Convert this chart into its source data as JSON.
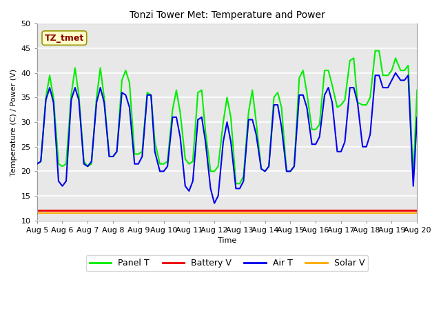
{
  "title": "Tonzi Tower Met: Temperature and Power",
  "xlabel": "Time",
  "ylabel": "Temperature (C) / Power (V)",
  "ylim": [
    10,
    50
  ],
  "xlim": [
    0,
    15
  ],
  "bg_color": "#e8e8e8",
  "annotation_text": "TZ_tmet",
  "annotation_color": "#8b0000",
  "annotation_bg": "#ffffcc",
  "legend_items": [
    "Panel T",
    "Battery V",
    "Air T",
    "Solar V"
  ],
  "legend_colors": [
    "#00ee00",
    "#ee0000",
    "#0000ee",
    "#ffaa00"
  ],
  "xtick_labels": [
    "Aug 5",
    "Aug 6",
    "Aug 7",
    "Aug 8",
    "Aug 9",
    "Aug 10",
    "Aug 11",
    "Aug 12",
    "Aug 13",
    "Aug 14",
    "Aug 15",
    "Aug 16",
    "Aug 17",
    "Aug 18",
    "Aug 19",
    "Aug 20"
  ],
  "xtick_positions": [
    0,
    1,
    2,
    3,
    4,
    5,
    6,
    7,
    8,
    9,
    10,
    11,
    12,
    13,
    14,
    15
  ],
  "ytick_labels": [
    "10",
    "15",
    "20",
    "25",
    "30",
    "35",
    "40",
    "45",
    "50"
  ],
  "ytick_positions": [
    10,
    15,
    20,
    25,
    30,
    35,
    40,
    45,
    50
  ],
  "battery_v_y": 12.0,
  "solar_v_y": 11.5,
  "line_width": 1.5,
  "font_size": 8,
  "title_font_size": 10,
  "panel_t_x": [
    0.0,
    0.15,
    0.35,
    0.5,
    0.65,
    0.85,
    1.0,
    1.15,
    1.35,
    1.5,
    1.65,
    1.85,
    2.0,
    2.15,
    2.35,
    2.5,
    2.65,
    2.85,
    3.0,
    3.15,
    3.35,
    3.5,
    3.65,
    3.85,
    4.0,
    4.15,
    4.35,
    4.5,
    4.65,
    4.85,
    5.0,
    5.15,
    5.35,
    5.5,
    5.65,
    5.85,
    6.0,
    6.15,
    6.35,
    6.5,
    6.65,
    6.85,
    7.0,
    7.15,
    7.35,
    7.5,
    7.65,
    7.85,
    8.0,
    8.15,
    8.35,
    8.5,
    8.65,
    8.85,
    9.0,
    9.15,
    9.35,
    9.5,
    9.65,
    9.85,
    10.0,
    10.15,
    10.35,
    10.5,
    10.65,
    10.85,
    11.0,
    11.15,
    11.35,
    11.5,
    11.65,
    11.85,
    12.0,
    12.15,
    12.35,
    12.5,
    12.65,
    12.85,
    13.0,
    13.15,
    13.35,
    13.5,
    13.65,
    13.85,
    14.0,
    14.15,
    14.35,
    14.5,
    14.65,
    14.85,
    15.0
  ],
  "panel_t_y": [
    21.5,
    22.0,
    35.0,
    39.5,
    35.0,
    21.5,
    21.0,
    21.5,
    35.5,
    41.0,
    35.5,
    22.0,
    21.0,
    21.5,
    35.0,
    41.0,
    35.0,
    23.0,
    23.0,
    24.0,
    38.5,
    40.5,
    38.0,
    23.5,
    23.5,
    24.0,
    36.0,
    35.5,
    26.0,
    21.5,
    21.5,
    22.0,
    32.5,
    36.5,
    32.0,
    22.5,
    21.5,
    22.0,
    36.0,
    36.5,
    28.0,
    20.0,
    20.0,
    21.0,
    30.0,
    35.0,
    31.0,
    17.5,
    17.5,
    19.0,
    32.0,
    36.5,
    30.0,
    20.5,
    20.0,
    21.0,
    35.0,
    36.0,
    33.0,
    20.0,
    20.0,
    21.0,
    39.0,
    40.5,
    36.0,
    28.5,
    28.5,
    29.5,
    40.5,
    40.5,
    37.5,
    33.0,
    33.5,
    34.5,
    42.5,
    43.0,
    34.0,
    33.5,
    33.5,
    35.0,
    44.5,
    44.5,
    39.5,
    39.5,
    40.5,
    43.0,
    40.5,
    40.5,
    41.5,
    19.0,
    36.5
  ],
  "air_t_x": [
    0.0,
    0.15,
    0.35,
    0.5,
    0.65,
    0.85,
    1.0,
    1.15,
    1.35,
    1.5,
    1.65,
    1.85,
    2.0,
    2.15,
    2.35,
    2.5,
    2.65,
    2.85,
    3.0,
    3.15,
    3.35,
    3.5,
    3.65,
    3.85,
    4.0,
    4.15,
    4.35,
    4.5,
    4.65,
    4.85,
    5.0,
    5.15,
    5.35,
    5.5,
    5.65,
    5.85,
    6.0,
    6.15,
    6.35,
    6.5,
    6.65,
    6.85,
    7.0,
    7.15,
    7.35,
    7.5,
    7.65,
    7.85,
    8.0,
    8.15,
    8.35,
    8.5,
    8.65,
    8.85,
    9.0,
    9.15,
    9.35,
    9.5,
    9.65,
    9.85,
    10.0,
    10.15,
    10.35,
    10.5,
    10.65,
    10.85,
    11.0,
    11.15,
    11.35,
    11.5,
    11.65,
    11.85,
    12.0,
    12.15,
    12.35,
    12.5,
    12.65,
    12.85,
    13.0,
    13.15,
    13.35,
    13.5,
    13.65,
    13.85,
    14.0,
    14.15,
    14.35,
    14.5,
    14.65,
    14.85,
    15.0
  ],
  "air_t_y": [
    21.5,
    22.0,
    34.5,
    37.0,
    34.0,
    18.0,
    17.0,
    18.0,
    34.5,
    37.0,
    34.5,
    21.5,
    21.0,
    22.0,
    34.0,
    37.0,
    34.0,
    23.0,
    23.0,
    24.0,
    36.0,
    35.5,
    33.0,
    21.5,
    21.5,
    23.0,
    35.5,
    35.5,
    24.0,
    20.0,
    20.0,
    21.0,
    31.0,
    31.0,
    27.0,
    17.0,
    16.0,
    18.0,
    30.5,
    31.0,
    26.0,
    16.5,
    13.5,
    15.0,
    26.0,
    30.0,
    26.0,
    16.5,
    16.5,
    18.0,
    30.5,
    30.5,
    27.5,
    20.5,
    20.0,
    21.0,
    33.5,
    33.5,
    29.0,
    20.0,
    20.0,
    21.0,
    35.5,
    35.5,
    33.0,
    25.5,
    25.5,
    27.0,
    35.5,
    37.0,
    34.0,
    24.0,
    24.0,
    26.0,
    37.0,
    37.0,
    34.0,
    25.0,
    25.0,
    27.5,
    39.5,
    39.5,
    37.0,
    37.0,
    38.5,
    40.0,
    38.5,
    38.5,
    39.5,
    17.0,
    31.0
  ]
}
